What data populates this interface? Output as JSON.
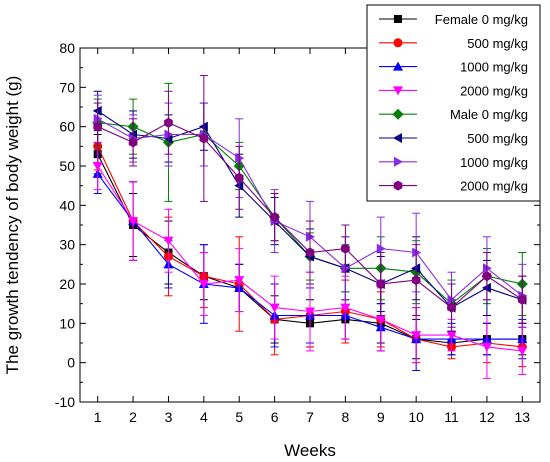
{
  "chart_data": {
    "type": "line",
    "xlabel": "Weeks",
    "ylabel": "The growth tendency of body weight (g)",
    "xlim": [
      0.5,
      13.5
    ],
    "ylim": [
      -10,
      80
    ],
    "xticks": [
      "1",
      "2",
      "3",
      "4",
      "5",
      "6",
      "7",
      "8",
      "9",
      "10",
      "11",
      "12",
      "13"
    ],
    "yticks": [
      "-10",
      "0",
      "10",
      "20",
      "30",
      "40",
      "50",
      "60",
      "70",
      "80"
    ],
    "x": [
      1,
      2,
      3,
      4,
      5,
      6,
      7,
      8,
      9,
      10,
      11,
      12,
      13
    ],
    "legend_position": "top-right",
    "series": [
      {
        "name": "Female 0 mg/kg",
        "color": "#000000",
        "marker": "square",
        "values": [
          53,
          35,
          28,
          22,
          19,
          11,
          10,
          11,
          10,
          6,
          5,
          6,
          6
        ],
        "errors": [
          5,
          8,
          8,
          6,
          6,
          6,
          6,
          5,
          5,
          5,
          3,
          4,
          4
        ]
      },
      {
        "name": "500 mg/kg",
        "color": "#ff0000",
        "marker": "circle",
        "values": [
          55,
          36,
          27,
          22,
          20,
          11,
          12,
          13,
          11,
          6,
          4,
          5,
          4
        ],
        "errors": [
          6,
          10,
          10,
          8,
          12,
          9,
          8,
          8,
          7,
          6,
          3,
          5,
          5
        ]
      },
      {
        "name": "1000 mg/kg",
        "color": "#0000ff",
        "marker": "triangle-up",
        "values": [
          48,
          36,
          25,
          20,
          19,
          12,
          12,
          12,
          9,
          6,
          6,
          6,
          6
        ],
        "errors": [
          5,
          10,
          6,
          10,
          6,
          8,
          7,
          6,
          6,
          8,
          4,
          4,
          5
        ]
      },
      {
        "name": "2000 mg/kg",
        "color": "#ff00ff",
        "marker": "triangle-down",
        "values": [
          50,
          36,
          31,
          20,
          21,
          14,
          13,
          14,
          11,
          7,
          7,
          4,
          3
        ],
        "errors": [
          6,
          10,
          8,
          8,
          8,
          8,
          10,
          8,
          8,
          7,
          4,
          8,
          6
        ]
      },
      {
        "name": "Male 0 mg/kg",
        "color": "#008000",
        "marker": "diamond",
        "values": [
          61,
          60,
          56,
          58,
          50,
          37,
          27,
          24,
          24,
          23,
          15,
          22,
          20
        ],
        "errors": [
          6,
          7,
          15,
          8,
          6,
          6,
          6,
          6,
          8,
          8,
          6,
          7,
          8
        ]
      },
      {
        "name": "500 mg/kg",
        "color": "#000080",
        "marker": "triangle-left",
        "values": [
          64,
          58,
          57,
          60,
          45,
          36,
          27,
          24,
          20,
          24,
          14,
          19,
          16
        ],
        "errors": [
          5,
          6,
          6,
          6,
          8,
          6,
          7,
          8,
          7,
          8,
          6,
          7,
          6
        ]
      },
      {
        "name": "1000 mg/kg",
        "color": "#8a2be2",
        "marker": "triangle-right",
        "values": [
          62,
          57,
          58,
          58,
          52,
          36,
          32,
          24,
          29,
          28,
          16,
          24,
          17
        ],
        "errors": [
          6,
          6,
          8,
          8,
          10,
          8,
          9,
          8,
          8,
          10,
          7,
          8,
          8
        ]
      },
      {
        "name": "2000 mg/kg",
        "color": "#800080",
        "marker": "hexagon",
        "values": [
          60,
          56,
          61,
          57,
          47,
          37,
          28,
          29,
          20,
          21,
          14,
          22,
          16
        ],
        "errors": [
          6,
          6,
          8,
          16,
          8,
          6,
          8,
          6,
          8,
          9,
          6,
          6,
          6
        ]
      }
    ]
  }
}
